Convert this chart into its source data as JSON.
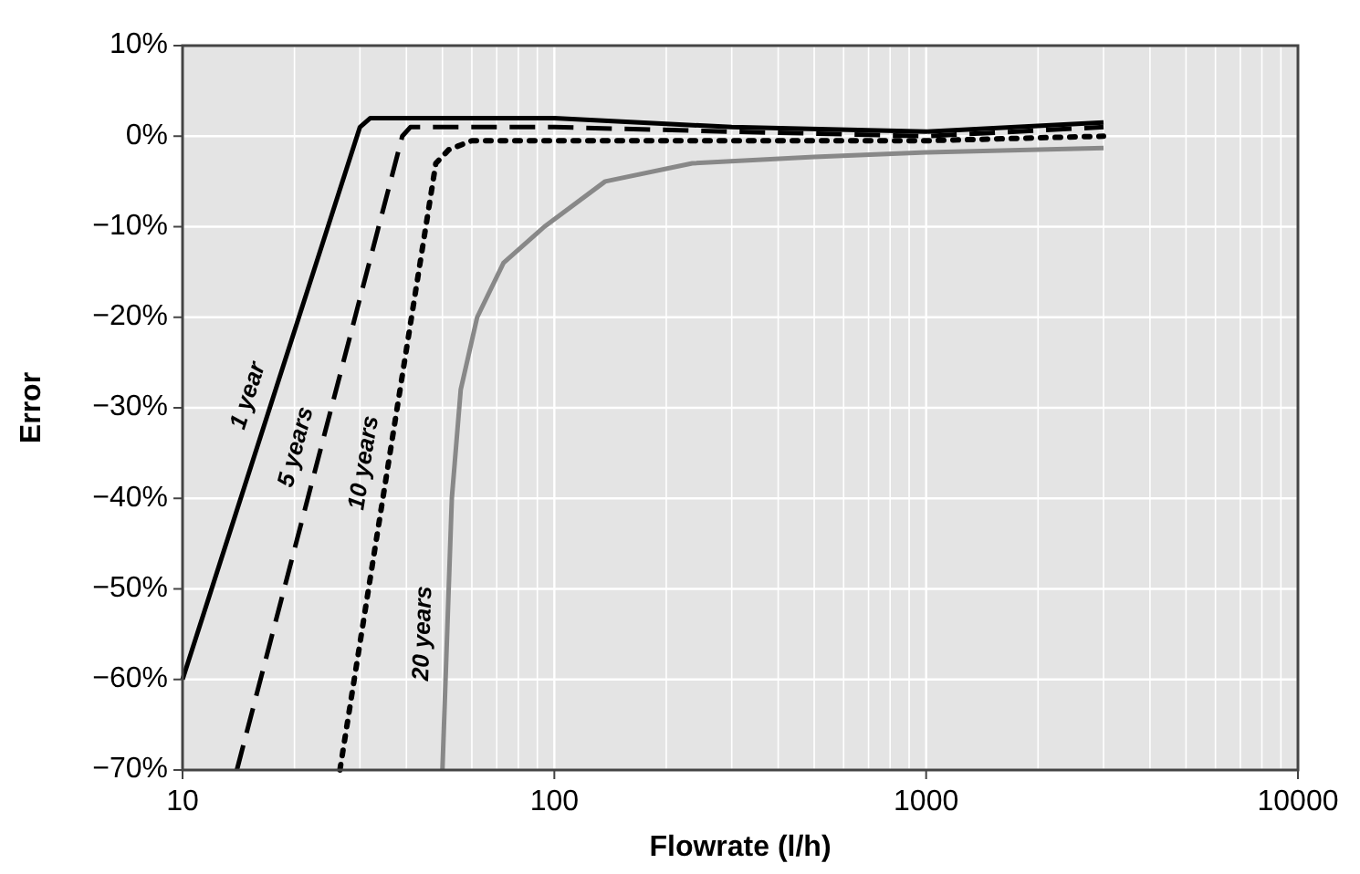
{
  "chart_data": {
    "type": "line",
    "xlabel": "Flowrate (l/h)",
    "ylabel": "Error",
    "log": "x",
    "grid": true,
    "xlim": [
      10,
      10000
    ],
    "xticks": [
      10,
      100,
      1000,
      10000
    ],
    "ylim": [
      -70,
      10
    ],
    "yticks": [
      {
        "value": 10,
        "label": "10%"
      },
      {
        "value": 0,
        "label": "0%"
      },
      {
        "value": -10,
        "label": "−10%"
      },
      {
        "value": -20,
        "label": "−20%"
      },
      {
        "value": -30,
        "label": "−30%"
      },
      {
        "value": -40,
        "label": "−40%"
      },
      {
        "value": -50,
        "label": "−50%"
      },
      {
        "value": -60,
        "label": "−60%"
      },
      {
        "value": -70,
        "label": "−70%"
      }
    ],
    "series": [
      {
        "name": "1 year",
        "color": "#000000",
        "line_style": "solid",
        "x": [
          10,
          30,
          32,
          100,
          300,
          1000,
          3000
        ],
        "values": [
          -60,
          1,
          2,
          2,
          1,
          0.5,
          1.5
        ]
      },
      {
        "name": "5 years",
        "color": "#000000",
        "line_style": "dashed",
        "x": [
          14,
          39,
          41,
          100,
          300,
          1000,
          3000
        ],
        "values": [
          -70,
          0,
          1,
          1,
          0.5,
          0,
          1
        ]
      },
      {
        "name": "10 years",
        "color": "#000000",
        "line_style": "dotted",
        "x": [
          26.5,
          48,
          52,
          60,
          100,
          300,
          1000,
          3000
        ],
        "values": [
          -70,
          -3,
          -1.5,
          -0.5,
          -0.5,
          -0.5,
          -0.5,
          0
        ]
      },
      {
        "name": "20 years",
        "color": "#888888",
        "line_style": "solid",
        "x": [
          50,
          53,
          56,
          62,
          73,
          94,
          137,
          235,
          500,
          1000,
          3000
        ],
        "values": [
          -70,
          -40,
          -28,
          -20,
          -14,
          -10,
          -5,
          -3,
          -2.3,
          -1.8,
          -1.3
        ]
      }
    ]
  }
}
